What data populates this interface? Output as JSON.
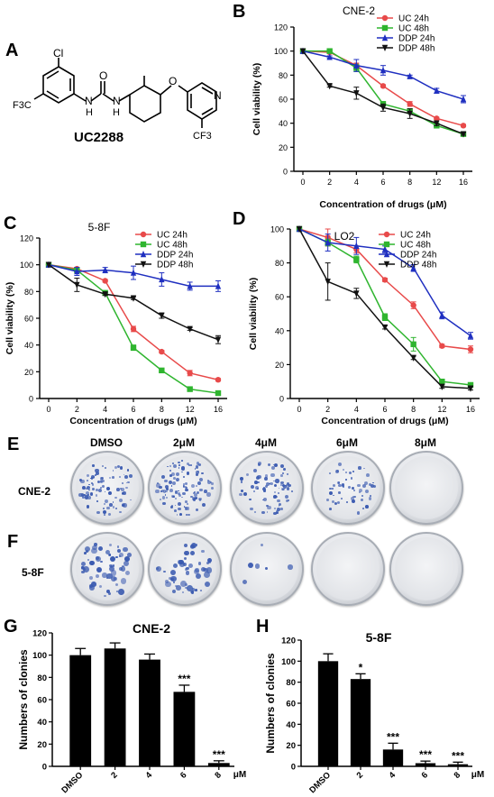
{
  "panel_letters": [
    "A",
    "B",
    "C",
    "D",
    "E",
    "F",
    "G",
    "H"
  ],
  "compound": {
    "name": "UC2288",
    "atoms": {
      "cl": "Cl",
      "cf3_left": "F3C",
      "cf3_right": "CF3",
      "nh_left": "N",
      "nh_right": "N",
      "h": "H",
      "o_carbonyl": "O",
      "o_ether": "O",
      "n_pyridine": "N"
    }
  },
  "line_legend": [
    "UC 24h",
    "UC 48h",
    "DDP 24h",
    "DDP 48h"
  ],
  "series_colors": [
    "#e84a4a",
    "#2fb52f",
    "#1f2fc0",
    "#111111"
  ],
  "panel_E": {
    "row_label": "CNE-2",
    "columns": [
      "DMSO",
      "2μM",
      "4μM",
      "6μM",
      "8μM"
    ]
  },
  "panel_F": {
    "row_label": "5-8F"
  },
  "colony_density": {
    "CNE-2": [
      90,
      110,
      80,
      55,
      0
    ],
    "5-8F": [
      60,
      55,
      6,
      0,
      0
    ]
  },
  "chart_data": [
    {
      "id": "B",
      "type": "line",
      "title": "CNE-2",
      "xlabel": "Concentration of drugs (μM)",
      "ylabel": "Cell viability (%)",
      "x": [
        0,
        2,
        4,
        6,
        8,
        12,
        16
      ],
      "ylim": [
        0,
        120
      ],
      "yticks": [
        0,
        20,
        40,
        60,
        80,
        100,
        120
      ],
      "series": [
        {
          "name": "UC 24h",
          "values": [
            100,
            99,
            88,
            71,
            56,
            44,
            38
          ],
          "err": [
            0,
            1,
            2,
            1,
            2,
            1,
            1
          ]
        },
        {
          "name": "UC 48h",
          "values": [
            100,
            100,
            86,
            56,
            50,
            38,
            31
          ],
          "err": [
            0,
            1,
            3,
            2,
            2,
            1,
            1
          ]
        },
        {
          "name": "DDP 24h",
          "values": [
            100,
            95,
            88,
            84,
            79,
            67,
            60
          ],
          "err": [
            0,
            1,
            5,
            4,
            1,
            2,
            3
          ]
        },
        {
          "name": "DDP 48h",
          "values": [
            100,
            71,
            65,
            53,
            48,
            40,
            31
          ],
          "err": [
            0,
            1,
            5,
            3,
            4,
            2,
            1
          ]
        }
      ]
    },
    {
      "id": "C",
      "type": "line",
      "title": "5-8F",
      "xlabel": "Concentration of drugs (μM)",
      "ylabel": "Cell viability (%)",
      "x": [
        0,
        2,
        4,
        6,
        8,
        12,
        16
      ],
      "ylim": [
        0,
        120
      ],
      "yticks": [
        0,
        20,
        40,
        60,
        80,
        100,
        120
      ],
      "series": [
        {
          "name": "UC 24h",
          "values": [
            100,
            97,
            88,
            52,
            35,
            19,
            14
          ],
          "err": [
            0,
            1,
            1,
            2,
            1,
            2,
            1
          ]
        },
        {
          "name": "UC 48h",
          "values": [
            100,
            96,
            79,
            38,
            21,
            7,
            4
          ],
          "err": [
            0,
            1,
            1,
            2,
            1,
            1,
            1
          ]
        },
        {
          "name": "DDP 24h",
          "values": [
            100,
            95,
            96,
            94,
            89,
            84,
            84
          ],
          "err": [
            0,
            3,
            2,
            5,
            5,
            3,
            4
          ]
        },
        {
          "name": "DDP 48h",
          "values": [
            100,
            85,
            78,
            75,
            62,
            52,
            44
          ],
          "err": [
            0,
            5,
            1,
            1,
            2,
            1,
            3
          ]
        }
      ]
    },
    {
      "id": "D",
      "type": "line",
      "title": "LO2",
      "xlabel": "Concentration of drugs (μM)",
      "ylabel": "Cell viability (%)",
      "x": [
        0,
        2,
        4,
        6,
        8,
        12,
        16
      ],
      "ylim": [
        0,
        100
      ],
      "yticks": [
        0,
        20,
        40,
        60,
        80,
        100
      ],
      "series": [
        {
          "name": "UC 24h",
          "values": [
            100,
            95,
            88,
            70,
            55,
            31,
            29
          ],
          "err": [
            0,
            5,
            2,
            1,
            2,
            1,
            2
          ]
        },
        {
          "name": "UC 48h",
          "values": [
            100,
            92,
            82,
            48,
            32,
            10,
            8
          ],
          "err": [
            0,
            2,
            2,
            2,
            4,
            1,
            1
          ]
        },
        {
          "name": "DDP 24h",
          "values": [
            100,
            92,
            90,
            88,
            77,
            49,
            37
          ],
          "err": [
            0,
            5,
            5,
            2,
            2,
            2,
            2
          ]
        },
        {
          "name": "DDP 48h",
          "values": [
            100,
            69,
            62,
            42,
            24,
            7,
            6
          ],
          "err": [
            0,
            11,
            3,
            1,
            1,
            1,
            1
          ]
        }
      ]
    },
    {
      "id": "G",
      "type": "bar",
      "title": "CNE-2",
      "ylabel": "Numbers of clonies",
      "xunit": "μM",
      "categories": [
        "DMSO",
        "2",
        "4",
        "6",
        "8"
      ],
      "values": [
        100,
        106,
        96,
        67,
        3
      ],
      "err": [
        6,
        5,
        5,
        6,
        2
      ],
      "annotations": [
        "",
        "",
        "",
        "***",
        "***"
      ],
      "ylim": [
        0,
        120
      ],
      "yticks": [
        0,
        20,
        40,
        60,
        80,
        100,
        120
      ]
    },
    {
      "id": "H",
      "type": "bar",
      "title": "5-8F",
      "ylabel": "Numbers of clonies",
      "xunit": "μM",
      "categories": [
        "DMSO",
        "2",
        "4",
        "6",
        "8"
      ],
      "values": [
        100,
        83,
        16,
        3,
        2
      ],
      "err": [
        7,
        5,
        6,
        2,
        2
      ],
      "annotations": [
        "",
        "*",
        "***",
        "***",
        "***"
      ],
      "ylim": [
        0,
        120
      ],
      "yticks": [
        0,
        20,
        40,
        60,
        80,
        100,
        120
      ]
    }
  ]
}
